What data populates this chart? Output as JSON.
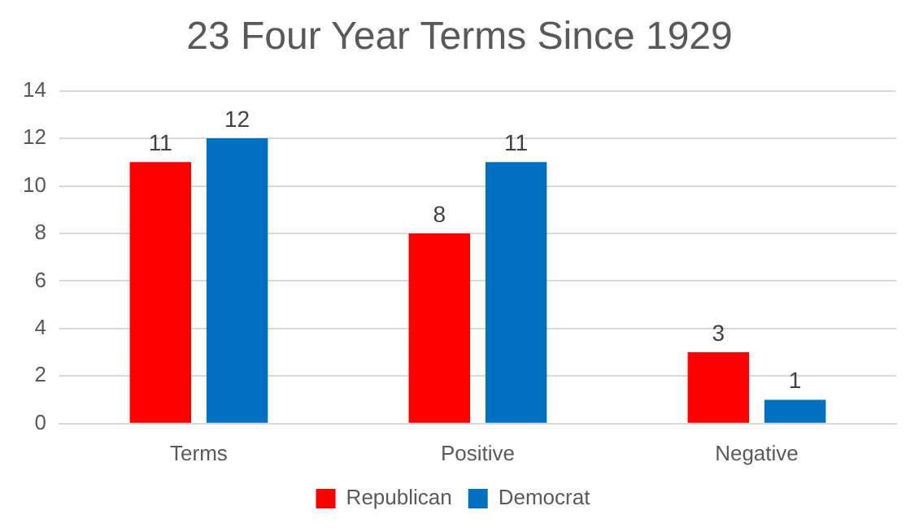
{
  "chart_data": {
    "type": "bar",
    "title": "23 Four Year Terms Since 1929",
    "categories": [
      "Terms",
      "Positive",
      "Negative"
    ],
    "series": [
      {
        "name": "Republican",
        "color": "#ff0000",
        "values": [
          11,
          8,
          3
        ]
      },
      {
        "name": "Democrat",
        "color": "#0070c0",
        "values": [
          12,
          11,
          1
        ]
      }
    ],
    "ylim": [
      0,
      14
    ],
    "yticks": [
      0,
      2,
      4,
      6,
      8,
      10,
      12,
      14
    ],
    "grid": "y",
    "legend": "bottom",
    "data_labels": true
  }
}
